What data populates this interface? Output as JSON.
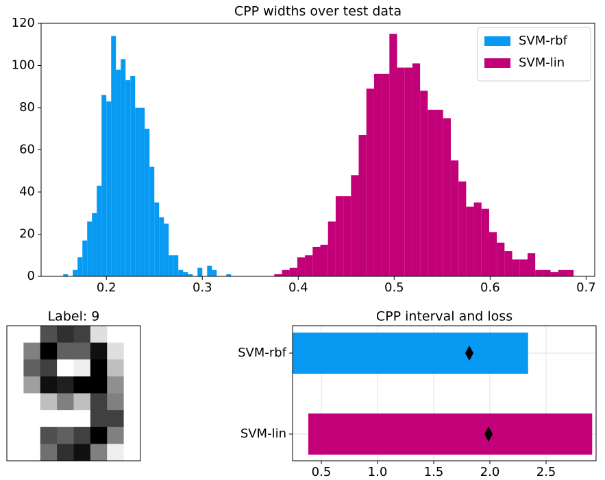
{
  "chart_data": [
    {
      "type": "histogram",
      "title": "CPP widths over test data",
      "xlim": [
        0.132,
        0.709
      ],
      "ylim": [
        0,
        120
      ],
      "xticks": [
        0.2,
        0.3,
        0.4,
        0.5,
        0.6,
        0.7
      ],
      "yticks": [
        0,
        20,
        40,
        60,
        80,
        100,
        120
      ],
      "legend": "upper right",
      "series": [
        {
          "name": "SVM-rbf",
          "color": "#069af3",
          "bins": [
            0.155,
            0.16,
            0.165,
            0.17,
            0.175,
            0.18,
            0.185,
            0.19,
            0.195,
            0.2,
            0.205,
            0.21,
            0.215,
            0.22,
            0.225,
            0.23,
            0.235,
            0.24,
            0.245,
            0.25,
            0.255,
            0.26,
            0.265,
            0.27,
            0.275,
            0.28,
            0.285,
            0.29,
            0.295,
            0.3,
            0.305,
            0.31,
            0.315,
            0.32,
            0.325,
            0.33
          ],
          "values": [
            1,
            0,
            3,
            9,
            17,
            26,
            30,
            43,
            86,
            83,
            114,
            98,
            103,
            93,
            95,
            80,
            80,
            70,
            52,
            35,
            28,
            25,
            10,
            10,
            3,
            2,
            1,
            0,
            4,
            0,
            5,
            3,
            0,
            0,
            1
          ]
        },
        {
          "name": "SVM-lin",
          "color": "#c20078",
          "bins": [
            0.375,
            0.383,
            0.391,
            0.399,
            0.407,
            0.415,
            0.423,
            0.431,
            0.439,
            0.447,
            0.455,
            0.463,
            0.471,
            0.479,
            0.487,
            0.495,
            0.503,
            0.511,
            0.519,
            0.527,
            0.535,
            0.543,
            0.551,
            0.559,
            0.567,
            0.575,
            0.583,
            0.591,
            0.599,
            0.607,
            0.615,
            0.623,
            0.631,
            0.639,
            0.647,
            0.655,
            0.663,
            0.671,
            0.679,
            0.687,
            0.695
          ],
          "values": [
            1,
            3,
            4,
            9,
            10,
            14,
            15,
            26,
            38,
            38,
            48,
            67,
            89,
            96,
            96,
            115,
            99,
            99,
            101,
            88,
            79,
            79,
            75,
            55,
            45,
            33,
            35,
            32,
            21,
            16,
            12,
            8,
            8,
            11,
            3,
            3,
            2,
            3,
            3,
            0
          ]
        }
      ]
    },
    {
      "type": "image",
      "title": "Label: 9",
      "vmax": 16,
      "pixels": [
        [
          0,
          0,
          11,
          13,
          12,
          2,
          0,
          0
        ],
        [
          0,
          8,
          16,
          10,
          10,
          15,
          2,
          0
        ],
        [
          0,
          10,
          12,
          0,
          1,
          16,
          4,
          0
        ],
        [
          0,
          6,
          15,
          14,
          16,
          16,
          7,
          0
        ],
        [
          0,
          0,
          4,
          8,
          4,
          12,
          8,
          0
        ],
        [
          0,
          0,
          0,
          0,
          0,
          12,
          12,
          0
        ],
        [
          0,
          0,
          11,
          10,
          12,
          16,
          8,
          0
        ],
        [
          0,
          0,
          9,
          13,
          15,
          8,
          1,
          0
        ]
      ]
    },
    {
      "type": "interval",
      "title": "CPP interval and loss",
      "categories": [
        "SVM-rbf",
        "SVM-lin"
      ],
      "colors": [
        "#069af3",
        "#c20078"
      ],
      "lower": [
        0.24,
        0.384
      ],
      "upper": [
        2.34,
        2.91
      ],
      "loss": [
        1.817,
        1.988
      ],
      "xlim": [
        0.244,
        2.945
      ],
      "xticks": [
        0.5,
        {
          "value": 1.0,
          "label": "1.0"
        },
        1.5,
        {
          "value": 2.0,
          "label": "2.0"
        },
        2.5
      ],
      "grid": true
    }
  ]
}
